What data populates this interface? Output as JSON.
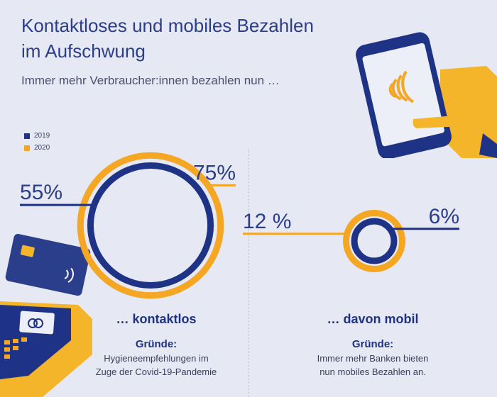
{
  "header": {
    "title_line1": "Kontaktloses und mobiles Bezahlen",
    "title_line2": "im Aufschwung",
    "subtitle": "Immer mehr Verbraucher:innen bezahlen nun …"
  },
  "legend": [
    {
      "label": "2019",
      "color": "#1f3386"
    },
    {
      "label": "2020",
      "color": "#f5a623"
    }
  ],
  "chart_data": [
    {
      "type": "concentric-circle",
      "category": "… kontaktlos",
      "series": [
        {
          "name": "2019",
          "value": 55,
          "label": "55%",
          "color": "#1f3386"
        },
        {
          "name": "2020",
          "value": 75,
          "label": "75%",
          "color": "#f5a623"
        }
      ]
    },
    {
      "type": "concentric-circle",
      "category": "… davon mobil",
      "series": [
        {
          "name": "2019",
          "value": 6,
          "label": "6%",
          "color": "#1f3386"
        },
        {
          "name": "2020",
          "value": 12,
          "label": "12 %",
          "color": "#f5a623"
        }
      ]
    }
  ],
  "captions": {
    "left": {
      "title": "… kontaktlos",
      "reason_heading": "Gründe:",
      "reason_line1": "Hygieneempfehlungen im",
      "reason_line2": "Zuge der Covid-19-Pandemie"
    },
    "right": {
      "title": "… davon mobil",
      "reason_heading": "Gründe:",
      "reason_line1": "Immer mehr Banken bieten",
      "reason_line2": "nun mobiles Bezahlen an."
    }
  },
  "icons": {
    "phone": "smartphone-contactless-icon",
    "card_terminal": "card-terminal-icon"
  }
}
